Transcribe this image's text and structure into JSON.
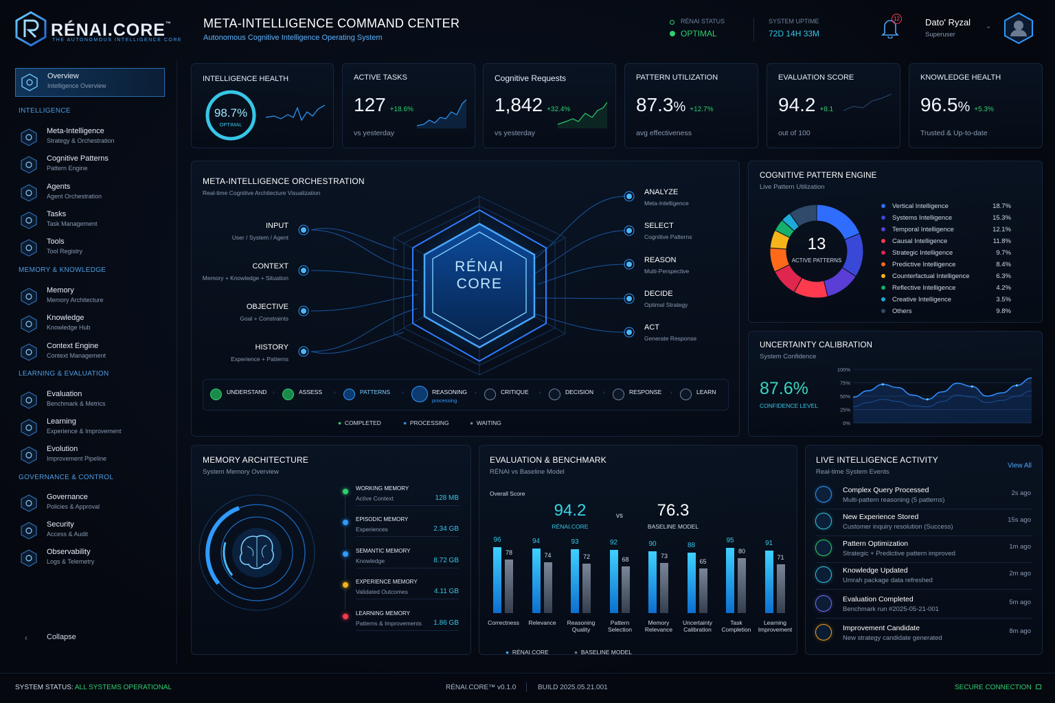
{
  "brand": {
    "name": "RÉNAI.CORE",
    "tm": "™",
    "tagline": "THE AUTONOMOUS INTELLIGENCE CORE"
  },
  "header": {
    "title": "META-INTELLIGENCE COMMAND CENTER",
    "subtitle": "Autonomous Cognitive Intelligence Operating System",
    "status_label": "RÉNAI STATUS",
    "status_value": "OPTIMAL",
    "uptime_label": "SYSTEM UPTIME",
    "uptime_value": "72D 14H 33M",
    "notifications": "12",
    "user_name": "Dato' Ryzal",
    "user_role": "Superuser"
  },
  "sidebar": {
    "active": {
      "label": "Overview",
      "sub": "Intelligence Overview"
    },
    "sections": [
      "INTELLIGENCE",
      "MEMORY & KNOWLEDGE",
      "LEARNING & EVALUATION",
      "GOVERNANCE & CONTROL"
    ],
    "items": [
      {
        "label": "Meta-Intelligence",
        "sub": "Strategy & Orchestration"
      },
      {
        "label": "Cognitive Patterns",
        "sub": "Pattern Engine"
      },
      {
        "label": "Agents",
        "sub": "Agent Orchestration"
      },
      {
        "label": "Tasks",
        "sub": "Task Management"
      },
      {
        "label": "Tools",
        "sub": "Tool Registry"
      },
      {
        "label": "Memory",
        "sub": "Memory Architecture"
      },
      {
        "label": "Knowledge",
        "sub": "Knowledge Hub"
      },
      {
        "label": "Context Engine",
        "sub": "Context Management"
      },
      {
        "label": "Evaluation",
        "sub": "Benchmark & Metrics"
      },
      {
        "label": "Learning",
        "sub": "Experience & Improvement"
      },
      {
        "label": "Evolution",
        "sub": "Improvement Pipeline"
      },
      {
        "label": "Governance",
        "sub": "Policies & Approval"
      },
      {
        "label": "Security",
        "sub": "Access & Audit"
      },
      {
        "label": "Observability",
        "sub": "Logs & Telemetry"
      }
    ],
    "collapse": "Collapse"
  },
  "kpis": [
    {
      "title": "INTELLIGENCE HEALTH",
      "value": "98.7%",
      "sub": "OPTIMAL",
      "fraction": 0.987
    },
    {
      "title": "ACTIVE TASKS",
      "value": "127",
      "delta": "+18.6%",
      "foot": "vs yesterday"
    },
    {
      "title": "Cognitive Requests",
      "value": "1,842",
      "delta": "+32.4%",
      "foot": "vs yesterday"
    },
    {
      "title": "PATTERN UTILIZATION",
      "value": "87.3",
      "unit": "%",
      "delta": "+12.7%",
      "foot": "avg effectiveness"
    },
    {
      "title": "EVALUATION SCORE",
      "value": "94.2",
      "delta": "+8.1",
      "foot": "out of 100"
    },
    {
      "title": "KNOWLEDGE HEALTH",
      "value": "96.5",
      "unit": "%",
      "delta": "+5.3%",
      "foot": "Trusted & Up-to-date"
    }
  ],
  "orchestration": {
    "title": "META-INTELLIGENCE ORCHESTRATION",
    "subtitle": "Real-time Cognitive Architecture Visualization",
    "core": [
      "RÉNAI",
      "CORE"
    ],
    "inputs": [
      {
        "label": "INPUT",
        "sub": "User / System / Agent"
      },
      {
        "label": "CONTEXT",
        "sub": "Memory + Knowledge + Situation"
      },
      {
        "label": "OBJECTIVE",
        "sub": "Goal + Constraints"
      },
      {
        "label": "HISTORY",
        "sub": "Experience + Patterns"
      }
    ],
    "outputs": [
      {
        "label": "ANALYZE",
        "sub": "Meta-Intelligence"
      },
      {
        "label": "SELECT",
        "sub": "Cognitive Patterns"
      },
      {
        "label": "REASON",
        "sub": "Multi-Perspective"
      },
      {
        "label": "DECIDE",
        "sub": "Optimal Strategy"
      },
      {
        "label": "ACT",
        "sub": "Generate Response"
      }
    ],
    "stages": [
      {
        "label": "UNDERSTAND",
        "state": "completed"
      },
      {
        "label": "ASSESS",
        "state": "completed"
      },
      {
        "label": "PATTERNS",
        "state": "processing"
      },
      {
        "label": "REASONING",
        "state": "processing",
        "note": "processing"
      },
      {
        "label": "CRITIQUE",
        "state": "waiting"
      },
      {
        "label": "DECISION",
        "state": "waiting"
      },
      {
        "label": "RESPONSE",
        "state": "waiting"
      },
      {
        "label": "LEARN",
        "state": "waiting"
      }
    ],
    "legend": [
      "COMPLETED",
      "PROCESSING",
      "WAITING"
    ]
  },
  "pattern_engine": {
    "title": "COGNITIVE PATTERN ENGINE",
    "subtitle": "Live Pattern Utilization",
    "center_value": "13",
    "center_label": "ACTIVE PATTERNS"
  },
  "uncertainty": {
    "title": "UNCERTAINTY CALIBRATION",
    "subtitle": "System Confidence",
    "value": "87.6%",
    "label": "CONFIDENCE LEVEL"
  },
  "memory": {
    "title": "MEMORY ARCHITECTURE",
    "subtitle": "System Memory Overview",
    "tiers": [
      {
        "name": "WORKING MEMORY",
        "desc": "Active Context",
        "size": "128 MB",
        "color": "#2fd06f"
      },
      {
        "name": "EPISODIC MEMORY",
        "desc": "Experiences",
        "size": "2.34 GB",
        "color": "#2f9bff"
      },
      {
        "name": "SEMANTIC MEMORY",
        "desc": "Knowledge",
        "size": "8.72 GB",
        "color": "#2f9bff"
      },
      {
        "name": "EXPERIENCE MEMORY",
        "desc": "Validated Outcomes",
        "size": "4.11 GB",
        "color": "#f5b41a"
      },
      {
        "name": "LEARNING MEMORY",
        "desc": "Patterns & Improvements",
        "size": "1.86 GB",
        "color": "#ff3a4e"
      }
    ]
  },
  "evaluation": {
    "title": "EVALUATION & BENCHMARK",
    "subtitle": "RÉNAI vs Baseline Model",
    "overall_label": "Overall Score",
    "score_a": "94.2",
    "label_a": "RÉNAI.CORE",
    "vs": "vs",
    "score_b": "76.3",
    "label_b": "BASELINE MODEL",
    "legend_a": "RÉNAI.CORE",
    "legend_b": "BASELINE MODEL"
  },
  "activity": {
    "title": "LIVE INTELLIGENCE ACTIVITY",
    "subtitle": "Real-time System Events",
    "view_all": "View All",
    "items": [
      {
        "title": "Complex Query Processed",
        "desc": "Multi-pattern reasoning (5 patterns)",
        "time": "2s ago",
        "color": "#2f9bff"
      },
      {
        "title": "New Experience Stored",
        "desc": "Customer inquiry resolution (Success)",
        "time": "15s ago",
        "color": "#37c6e6"
      },
      {
        "title": "Pattern Optimization",
        "desc": "Strategic + Predictive pattern improved",
        "time": "1m ago",
        "color": "#2fd06f"
      },
      {
        "title": "Knowledge Updated",
        "desc": "Umrah package data refreshed",
        "time": "2m ago",
        "color": "#37c6e6"
      },
      {
        "title": "Evaluation Completed",
        "desc": "Benchmark run #2025-05-21-001",
        "time": "5m ago",
        "color": "#7a6cff"
      },
      {
        "title": "Improvement Candidate",
        "desc": "New strategy candidate generated",
        "time": "8m ago",
        "color": "#f5a31a"
      }
    ]
  },
  "footer": {
    "status_label": "SYSTEM STATUS:",
    "status_value": "ALL SYSTEMS OPERATIONAL",
    "version": "RÉNAI.CORE™ v0.1.0",
    "build": "BUILD 2025.05.21.001",
    "secure": "SECURE CONNECTION"
  },
  "chart_data": [
    {
      "type": "pie",
      "title": "COGNITIVE PATTERN ENGINE",
      "categories": [
        "Vertical Intelligence",
        "Systems Intelligence",
        "Temporal Intelligence",
        "Causal Intelligence",
        "Strategic Intelligence",
        "Predictive Intelligence",
        "Counterfactual Intelligence",
        "Reflective Intelligence",
        "Creative Intelligence",
        "Others"
      ],
      "values": [
        18.7,
        15.3,
        12.1,
        11.8,
        9.7,
        8.4,
        6.3,
        4.2,
        3.5,
        9.8
      ],
      "labels": [
        "18.7%",
        "15.3%",
        "12.1%",
        "11.8%",
        "9.7%",
        "8.4%",
        "6.3%",
        "4.2%",
        "3.5%",
        "9.8%"
      ],
      "colors": [
        "#2f6dff",
        "#3a48d8",
        "#5a3ed6",
        "#ff3a4e",
        "#e0264e",
        "#ff6a1a",
        "#f5b41a",
        "#16b06a",
        "#1ea9d6",
        "#2f4a6a"
      ]
    },
    {
      "type": "line",
      "title": "UNCERTAINTY CALIBRATION",
      "x": [
        0,
        1,
        2,
        3,
        4,
        5,
        6,
        7,
        8,
        9,
        10,
        11,
        12
      ],
      "series": [
        {
          "values": [
            48,
            60,
            72,
            66,
            52,
            44,
            58,
            74,
            68,
            50,
            56,
            70,
            84
          ]
        },
        {
          "values": [
            30,
            38,
            44,
            40,
            32,
            30,
            40,
            52,
            48,
            38,
            42,
            50,
            60
          ]
        }
      ],
      "yticks": [
        "0%",
        "25%",
        "50%",
        "75%",
        "100%"
      ],
      "ylim": [
        0,
        100
      ],
      "grid": true
    },
    {
      "type": "bar",
      "title": "EVALUATION & BENCHMARK",
      "categories": [
        "Correctness",
        "Relevance",
        "Reasoning Quality",
        "Pattern Selection",
        "Memory Relevance",
        "Uncertainty Calibration",
        "Task Completion",
        "Learning Improvement"
      ],
      "series": [
        {
          "name": "RÉNAI.CORE",
          "values": [
            96,
            94,
            93,
            92,
            90,
            88,
            95,
            91
          ]
        },
        {
          "name": "BASELINE MODEL",
          "values": [
            78,
            74,
            72,
            68,
            73,
            65,
            80,
            71
          ]
        }
      ],
      "ylim": [
        0,
        100
      ],
      "legend": "bottom"
    }
  ]
}
